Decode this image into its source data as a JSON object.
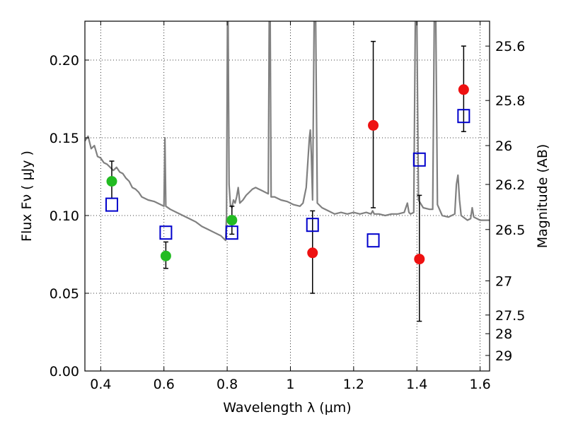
{
  "chart_data": {
    "type": "scatter",
    "xlabel": "Wavelength  λ (μm)",
    "ylabel": "Flux  Fν  ( μJy )",
    "ylabel_right": "Magnitude (AB)",
    "xlim": [
      0.35,
      1.63
    ],
    "ylim": [
      0.0,
      0.225
    ],
    "grid": true,
    "x_ticks": [
      0.4,
      0.6,
      0.8,
      1.0,
      1.2,
      1.4,
      1.6
    ],
    "x_tick_labels": [
      "0.4",
      "0.6",
      "0.8",
      "1",
      "1.2",
      "1.4",
      "1.6"
    ],
    "y_ticks": [
      0.0,
      0.05,
      0.1,
      0.15,
      0.2
    ],
    "y_tick_labels": [
      "0.00",
      "0.05",
      "0.10",
      "0.15",
      "0.20"
    ],
    "right_ticks": [
      {
        "label": "25.6",
        "flux": 0.209
      },
      {
        "label": "25.8",
        "flux": 0.174
      },
      {
        "label": "26",
        "flux": 0.145
      },
      {
        "label": "26.2",
        "flux": 0.12
      },
      {
        "label": "26.5",
        "flux": 0.091
      },
      {
        "label": "27",
        "flux": 0.058
      },
      {
        "label": "27.5",
        "flux": 0.036
      },
      {
        "label": "28",
        "flux": 0.024
      },
      {
        "label": "29",
        "flux": 0.01
      }
    ],
    "spectrum": {
      "color": "#808080",
      "points": [
        [
          0.35,
          0.148
        ],
        [
          0.36,
          0.151
        ],
        [
          0.37,
          0.143
        ],
        [
          0.38,
          0.145
        ],
        [
          0.39,
          0.138
        ],
        [
          0.4,
          0.137
        ],
        [
          0.41,
          0.134
        ],
        [
          0.42,
          0.133
        ],
        [
          0.43,
          0.131
        ],
        [
          0.44,
          0.129
        ],
        [
          0.45,
          0.131
        ],
        [
          0.46,
          0.128
        ],
        [
          0.47,
          0.127
        ],
        [
          0.48,
          0.124
        ],
        [
          0.49,
          0.122
        ],
        [
          0.5,
          0.118
        ],
        [
          0.51,
          0.117
        ],
        [
          0.52,
          0.115
        ],
        [
          0.53,
          0.112
        ],
        [
          0.55,
          0.11
        ],
        [
          0.57,
          0.109
        ],
        [
          0.59,
          0.107
        ],
        [
          0.6,
          0.106
        ],
        [
          0.603,
          0.15
        ],
        [
          0.606,
          0.106
        ],
        [
          0.62,
          0.104
        ],
        [
          0.64,
          0.102
        ],
        [
          0.66,
          0.1
        ],
        [
          0.68,
          0.098
        ],
        [
          0.7,
          0.096
        ],
        [
          0.72,
          0.093
        ],
        [
          0.74,
          0.091
        ],
        [
          0.76,
          0.089
        ],
        [
          0.78,
          0.087
        ],
        [
          0.79,
          0.085
        ],
        [
          0.795,
          0.084
        ],
        [
          0.798,
          0.1
        ],
        [
          0.801,
          0.225
        ],
        [
          0.803,
          0.225
        ],
        [
          0.806,
          0.12
        ],
        [
          0.81,
          0.107
        ],
        [
          0.815,
          0.105
        ],
        [
          0.82,
          0.11
        ],
        [
          0.825,
          0.108
        ],
        [
          0.83,
          0.112
        ],
        [
          0.835,
          0.118
        ],
        [
          0.84,
          0.108
        ],
        [
          0.85,
          0.11
        ],
        [
          0.86,
          0.113
        ],
        [
          0.87,
          0.115
        ],
        [
          0.88,
          0.117
        ],
        [
          0.89,
          0.118
        ],
        [
          0.9,
          0.117
        ],
        [
          0.91,
          0.116
        ],
        [
          0.92,
          0.115
        ],
        [
          0.93,
          0.114
        ],
        [
          0.933,
          0.225
        ],
        [
          0.936,
          0.225
        ],
        [
          0.939,
          0.112
        ],
        [
          0.95,
          0.112
        ],
        [
          0.97,
          0.11
        ],
        [
          0.99,
          0.109
        ],
        [
          1.01,
          0.107
        ],
        [
          1.03,
          0.106
        ],
        [
          1.04,
          0.108
        ],
        [
          1.05,
          0.118
        ],
        [
          1.06,
          0.15
        ],
        [
          1.063,
          0.155
        ],
        [
          1.066,
          0.14
        ],
        [
          1.07,
          0.11
        ],
        [
          1.075,
          0.225
        ],
        [
          1.08,
          0.225
        ],
        [
          1.085,
          0.108
        ],
        [
          1.1,
          0.105
        ],
        [
          1.12,
          0.103
        ],
        [
          1.14,
          0.101
        ],
        [
          1.16,
          0.102
        ],
        [
          1.18,
          0.101
        ],
        [
          1.2,
          0.102
        ],
        [
          1.22,
          0.101
        ],
        [
          1.24,
          0.102
        ],
        [
          1.255,
          0.101
        ],
        [
          1.26,
          0.103
        ],
        [
          1.265,
          0.101
        ],
        [
          1.28,
          0.101
        ],
        [
          1.3,
          0.1
        ],
        [
          1.32,
          0.101
        ],
        [
          1.34,
          0.101
        ],
        [
          1.36,
          0.102
        ],
        [
          1.37,
          0.108
        ],
        [
          1.375,
          0.102
        ],
        [
          1.38,
          0.101
        ],
        [
          1.39,
          0.102
        ],
        [
          1.395,
          0.225
        ],
        [
          1.4,
          0.225
        ],
        [
          1.405,
          0.11
        ],
        [
          1.42,
          0.105
        ],
        [
          1.44,
          0.104
        ],
        [
          1.45,
          0.104
        ],
        [
          1.455,
          0.225
        ],
        [
          1.46,
          0.225
        ],
        [
          1.465,
          0.107
        ],
        [
          1.48,
          0.1
        ],
        [
          1.5,
          0.099
        ],
        [
          1.52,
          0.101
        ],
        [
          1.525,
          0.12
        ],
        [
          1.53,
          0.126
        ],
        [
          1.535,
          0.11
        ],
        [
          1.54,
          0.1
        ],
        [
          1.56,
          0.097
        ],
        [
          1.57,
          0.098
        ],
        [
          1.575,
          0.105
        ],
        [
          1.58,
          0.099
        ],
        [
          1.6,
          0.097
        ],
        [
          1.63,
          0.097
        ]
      ]
    },
    "series": [
      {
        "marker": "circle",
        "color": "#22bb22",
        "points": [
          {
            "x": 0.435,
            "y": 0.122,
            "err_low": 0.111,
            "err_high": 0.135
          },
          {
            "x": 0.606,
            "y": 0.074,
            "err_low": 0.066,
            "err_high": 0.083
          },
          {
            "x": 0.815,
            "y": 0.097,
            "err_low": 0.088,
            "err_high": 0.106
          }
        ]
      },
      {
        "marker": "circle",
        "color": "#ee1111",
        "points": [
          {
            "x": 1.07,
            "y": 0.076,
            "err_low": 0.05,
            "err_high": 0.103
          },
          {
            "x": 1.262,
            "y": 0.158,
            "err_low": 0.105,
            "err_high": 0.212
          },
          {
            "x": 1.408,
            "y": 0.072,
            "err_low": 0.032,
            "err_high": 0.113
          },
          {
            "x": 1.548,
            "y": 0.181,
            "err_low": 0.154,
            "err_high": 0.209
          }
        ]
      },
      {
        "marker": "open-square",
        "color": "#0000cc",
        "points": [
          {
            "x": 0.435,
            "y": 0.107
          },
          {
            "x": 0.606,
            "y": 0.089
          },
          {
            "x": 0.815,
            "y": 0.089
          },
          {
            "x": 1.07,
            "y": 0.094
          },
          {
            "x": 1.262,
            "y": 0.084
          },
          {
            "x": 1.408,
            "y": 0.136
          },
          {
            "x": 1.548,
            "y": 0.164
          }
        ]
      }
    ]
  }
}
